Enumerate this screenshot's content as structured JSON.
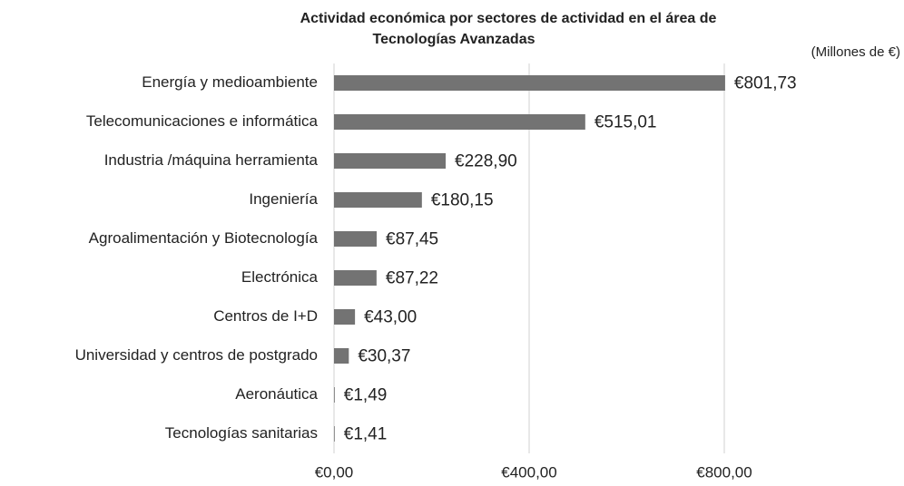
{
  "chart_data": {
    "type": "bar",
    "orientation": "horizontal",
    "title": [
      "Actividad económica por sectores de actividad en el área de",
      "Tecnologías Avanzadas"
    ],
    "unit_label": "(Millones de €)",
    "categories": [
      "Energía y medioambiente",
      "Telecomunicaciones e informática",
      "Industria /máquina herramienta",
      "Ingeniería",
      "Agroalimentación y Biotecnología",
      "Electrónica",
      "Centros de I+D",
      "Universidad y centros de postgrado",
      "Aeronáutica",
      "Tecnologías sanitarias"
    ],
    "values": [
      801.73,
      515.01,
      228.9,
      180.15,
      87.45,
      87.22,
      43.0,
      30.37,
      1.49,
      1.41
    ],
    "value_labels": [
      "€801,73",
      "€515,01",
      "€228,90",
      "€180,15",
      "€87,45",
      "€87,22",
      "€43,00",
      "€30,37",
      "€1,49",
      "€1,41"
    ],
    "color": "#737373",
    "xlim": [
      0,
      800
    ],
    "xticks": [
      {
        "value": 0,
        "label": "€0,00"
      },
      {
        "value": 400,
        "label": "€400,00"
      },
      {
        "value": 800,
        "label": "€800,00"
      }
    ],
    "grid": true
  }
}
